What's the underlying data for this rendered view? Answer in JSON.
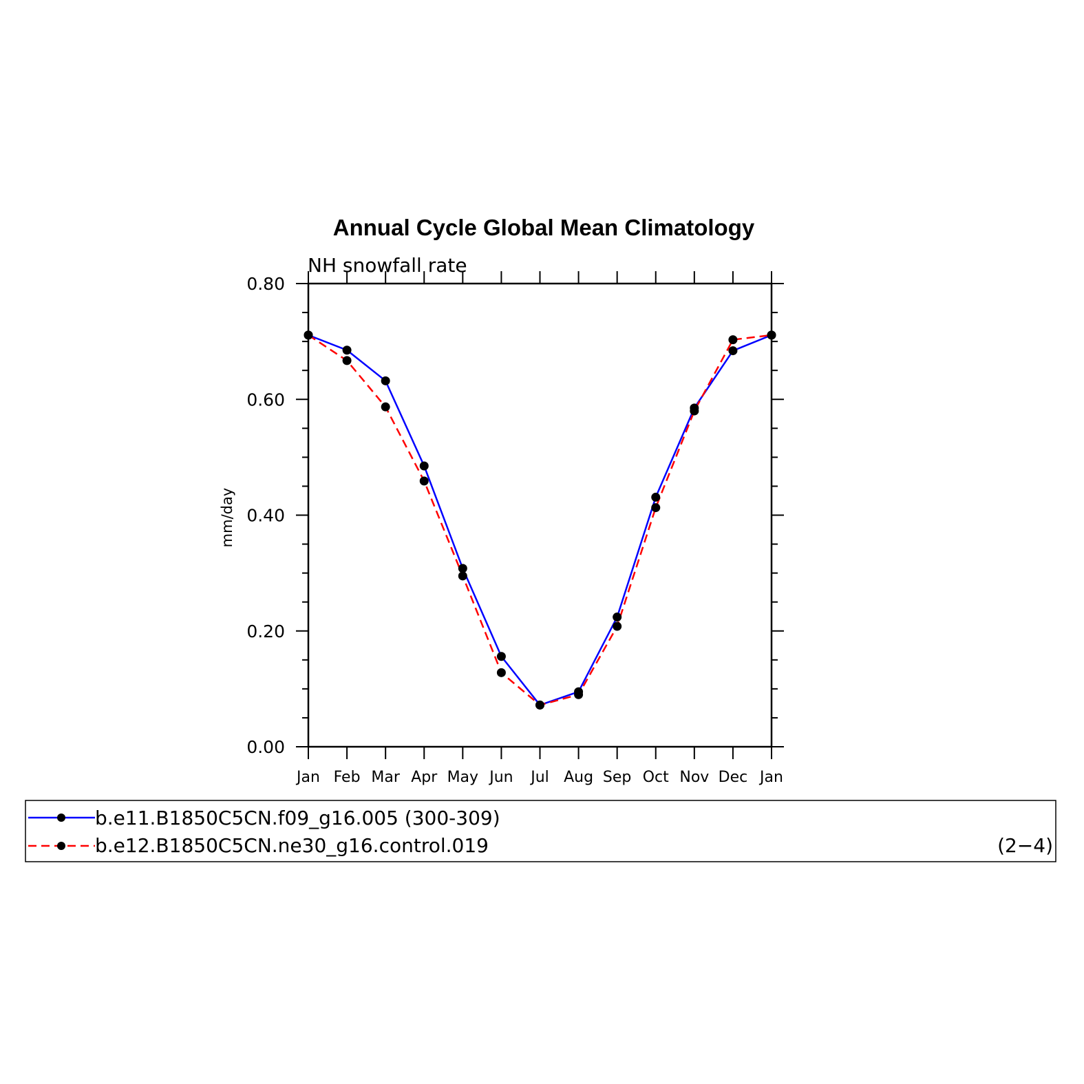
{
  "chart_data": {
    "type": "line",
    "title": "Annual Cycle Global Mean Climatology",
    "subtitle": "NH snowfall rate",
    "ylabel": "mm/day",
    "ylim": [
      0,
      0.8
    ],
    "yticks": [
      "0.00",
      "0.20",
      "0.40",
      "0.60",
      "0.80"
    ],
    "categories": [
      "Jan",
      "Feb",
      "Mar",
      "Apr",
      "May",
      "Jun",
      "Jul",
      "Aug",
      "Sep",
      "Oct",
      "Nov",
      "Dec",
      "Jan"
    ],
    "series": [
      {
        "name": "b.e11.B1850C5CN.f09_g16.005 (300-309)",
        "color": "#0000ff",
        "style": "solid",
        "values": [
          0.711,
          0.685,
          0.632,
          0.485,
          0.308,
          0.156,
          0.072,
          0.095,
          0.224,
          0.431,
          0.585,
          0.684,
          0.711
        ]
      },
      {
        "name": "b.e12.B1850C5CN.ne30_g16.control.019",
        "color": "#ff0000",
        "style": "dashed",
        "values": [
          0.711,
          0.667,
          0.587,
          0.459,
          0.295,
          0.128,
          0.072,
          0.09,
          0.208,
          0.413,
          0.58,
          0.703,
          0.711
        ]
      }
    ],
    "legend": {
      "placement": "bottom",
      "note": "(2−4)"
    }
  }
}
